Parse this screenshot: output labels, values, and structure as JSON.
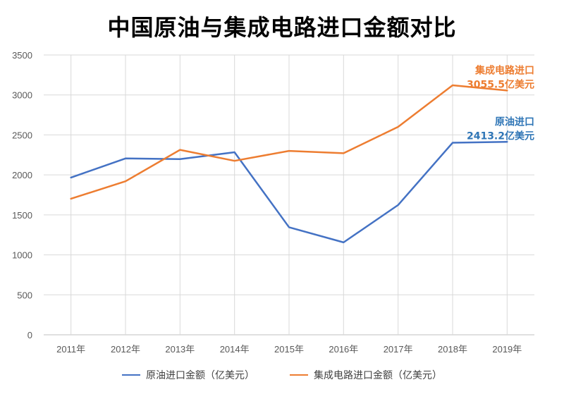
{
  "chart_data": {
    "type": "line",
    "title": "中国原油与集成电路进口金额对比",
    "categories": [
      "2011年",
      "2012年",
      "2013年",
      "2014年",
      "2015年",
      "2016年",
      "2017年",
      "2018年",
      "2019年"
    ],
    "ylim": [
      0,
      3500
    ],
    "yticks": [
      0,
      500,
      1000,
      1500,
      2000,
      2500,
      3000,
      3500
    ],
    "grid": true,
    "legend_position": "bottom",
    "series": [
      {
        "name": "原油进口金额（亿美元）",
        "color": "#4472C4",
        "values": [
          1967,
          2206,
          2197,
          2283,
          1345,
          1156,
          1623,
          2402,
          2413.2
        ]
      },
      {
        "name": "集成电路进口金额（亿美元）",
        "color": "#ED7D31",
        "values": [
          1702,
          1920,
          2313,
          2176,
          2300,
          2271,
          2601,
          3121,
          3055.5
        ]
      }
    ],
    "annotations": [
      {
        "series": 1,
        "line1": "集成电路进口",
        "line2": "3055.5亿美元",
        "color": "#ED7D31"
      },
      {
        "series": 0,
        "line1": "原油进口",
        "line2": "2413.2亿美元",
        "color": "#2E75B6"
      }
    ]
  }
}
